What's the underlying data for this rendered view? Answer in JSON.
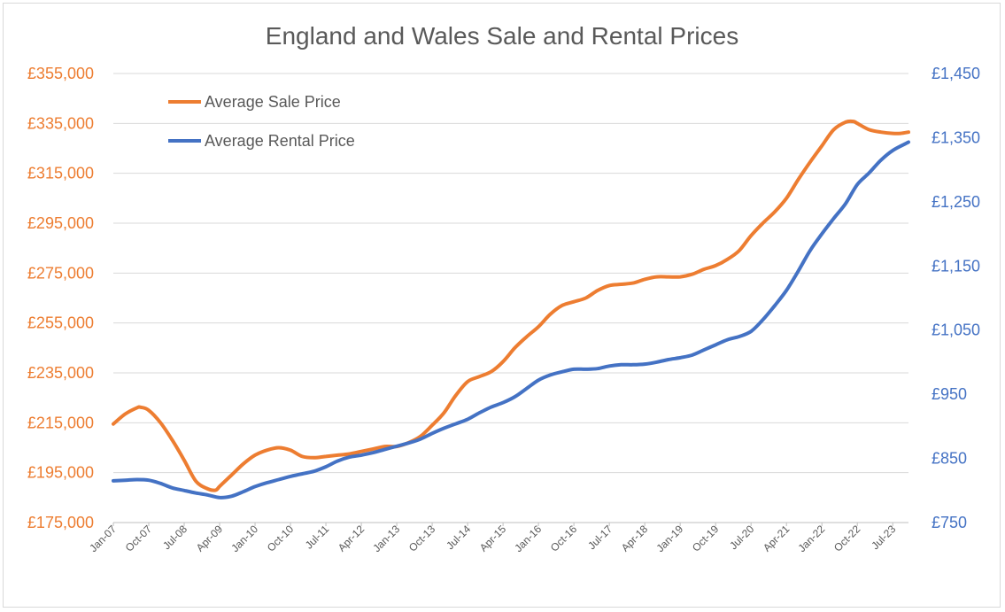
{
  "chart_data": {
    "type": "line",
    "title": "England and Wales Sale and Rental Prices",
    "x_tick_labels": [
      "Jan-07",
      "Oct-07",
      "Jul-08",
      "Apr-09",
      "Jan-10",
      "Oct-10",
      "Jul-11",
      "Apr-12",
      "Jan-13",
      "Oct-13",
      "Jul-14",
      "Apr-15",
      "Jan-16",
      "Oct-16",
      "Jul-17",
      "Apr-18",
      "Jan-19",
      "Oct-19",
      "Jul-20",
      "Apr-21",
      "Jan-22",
      "Oct-22",
      "Jul-23"
    ],
    "x_range": [
      "2007-01",
      "2023-11"
    ],
    "left_axis": {
      "min": 175000,
      "max": 355000,
      "step": 20000,
      "tick_labels": [
        "£175,000",
        "£195,000",
        "£215,000",
        "£235,000",
        "£255,000",
        "£275,000",
        "£295,000",
        "£315,000",
        "£335,000",
        "£355,000"
      ],
      "color": "#ED7D31"
    },
    "right_axis": {
      "min": 750,
      "max": 1450,
      "step": 100,
      "tick_labels": [
        "£750",
        "£850",
        "£950",
        "£1,050",
        "£1,150",
        "£1,250",
        "£1,350",
        "£1,450"
      ],
      "color": "#4472C4"
    },
    "legend_position": "top-left",
    "grid": "horizontal",
    "series": [
      {
        "name": "Average Sale Price",
        "axis": "left",
        "color": "#ED7D31",
        "points": [
          [
            "2007-01",
            214500
          ],
          [
            "2007-04",
            218500
          ],
          [
            "2007-07",
            221000
          ],
          [
            "2007-08",
            221200
          ],
          [
            "2007-10",
            220000
          ],
          [
            "2008-01",
            215000
          ],
          [
            "2008-04",
            208000
          ],
          [
            "2008-07",
            200000
          ],
          [
            "2008-10",
            191500
          ],
          [
            "2009-01",
            188500
          ],
          [
            "2009-03",
            188000
          ],
          [
            "2009-04",
            189500
          ],
          [
            "2009-07",
            194000
          ],
          [
            "2009-10",
            198500
          ],
          [
            "2010-01",
            202000
          ],
          [
            "2010-04",
            204000
          ],
          [
            "2010-07",
            205000
          ],
          [
            "2010-10",
            204000
          ],
          [
            "2011-01",
            201500
          ],
          [
            "2011-04",
            201000
          ],
          [
            "2011-07",
            201500
          ],
          [
            "2011-10",
            202000
          ],
          [
            "2012-01",
            202500
          ],
          [
            "2012-04",
            203500
          ],
          [
            "2012-07",
            204500
          ],
          [
            "2012-10",
            205500
          ],
          [
            "2013-01",
            205500
          ],
          [
            "2013-04",
            207000
          ],
          [
            "2013-07",
            209500
          ],
          [
            "2013-10",
            214000
          ],
          [
            "2014-01",
            219000
          ],
          [
            "2014-04",
            226000
          ],
          [
            "2014-07",
            231500
          ],
          [
            "2014-10",
            233500
          ],
          [
            "2015-01",
            235500
          ],
          [
            "2015-04",
            239500
          ],
          [
            "2015-07",
            245000
          ],
          [
            "2015-10",
            249500
          ],
          [
            "2016-01",
            253500
          ],
          [
            "2016-04",
            258500
          ],
          [
            "2016-07",
            262000
          ],
          [
            "2016-10",
            263500
          ],
          [
            "2017-01",
            265000
          ],
          [
            "2017-04",
            268000
          ],
          [
            "2017-07",
            270000
          ],
          [
            "2017-10",
            270500
          ],
          [
            "2018-01",
            271000
          ],
          [
            "2018-04",
            272500
          ],
          [
            "2018-07",
            273500
          ],
          [
            "2018-10",
            273500
          ],
          [
            "2019-01",
            273500
          ],
          [
            "2019-04",
            274500
          ],
          [
            "2019-07",
            276500
          ],
          [
            "2019-10",
            278000
          ],
          [
            "2020-01",
            280500
          ],
          [
            "2020-04",
            284000
          ],
          [
            "2020-07",
            290000
          ],
          [
            "2020-10",
            295000
          ],
          [
            "2021-01",
            299500
          ],
          [
            "2021-04",
            305000
          ],
          [
            "2021-07",
            312500
          ],
          [
            "2021-10",
            319500
          ],
          [
            "2022-01",
            326000
          ],
          [
            "2022-04",
            332500
          ],
          [
            "2022-07",
            335500
          ],
          [
            "2022-09",
            335800
          ],
          [
            "2022-10",
            335000
          ],
          [
            "2023-01",
            332500
          ],
          [
            "2023-04",
            331500
          ],
          [
            "2023-07",
            331000
          ],
          [
            "2023-09",
            331000
          ],
          [
            "2023-11",
            331500
          ]
        ]
      },
      {
        "name": "Average Rental Price",
        "axis": "right",
        "color": "#4472C4",
        "points": [
          [
            "2007-01",
            815
          ],
          [
            "2007-04",
            816
          ],
          [
            "2007-07",
            817
          ],
          [
            "2007-10",
            816
          ],
          [
            "2008-01",
            811
          ],
          [
            "2008-04",
            804
          ],
          [
            "2008-07",
            800
          ],
          [
            "2008-10",
            796
          ],
          [
            "2009-01",
            793
          ],
          [
            "2009-04",
            789
          ],
          [
            "2009-07",
            791
          ],
          [
            "2009-10",
            798
          ],
          [
            "2010-01",
            806
          ],
          [
            "2010-04",
            812
          ],
          [
            "2010-07",
            817
          ],
          [
            "2010-10",
            822
          ],
          [
            "2011-01",
            826
          ],
          [
            "2011-04",
            830
          ],
          [
            "2011-07",
            837
          ],
          [
            "2011-10",
            846
          ],
          [
            "2012-01",
            852
          ],
          [
            "2012-04",
            855
          ],
          [
            "2012-07",
            859
          ],
          [
            "2012-10",
            864
          ],
          [
            "2013-01",
            869
          ],
          [
            "2013-04",
            874
          ],
          [
            "2013-07",
            880
          ],
          [
            "2013-10",
            889
          ],
          [
            "2014-01",
            897
          ],
          [
            "2014-04",
            904
          ],
          [
            "2014-07",
            911
          ],
          [
            "2014-10",
            921
          ],
          [
            "2015-01",
            930
          ],
          [
            "2015-04",
            937
          ],
          [
            "2015-07",
            946
          ],
          [
            "2015-10",
            959
          ],
          [
            "2016-01",
            972
          ],
          [
            "2016-04",
            980
          ],
          [
            "2016-07",
            985
          ],
          [
            "2016-10",
            989
          ],
          [
            "2017-01",
            989
          ],
          [
            "2017-04",
            990
          ],
          [
            "2017-07",
            994
          ],
          [
            "2017-10",
            996
          ],
          [
            "2018-01",
            996
          ],
          [
            "2018-04",
            997
          ],
          [
            "2018-07",
            1000
          ],
          [
            "2018-10",
            1004
          ],
          [
            "2019-01",
            1007
          ],
          [
            "2019-04",
            1011
          ],
          [
            "2019-07",
            1019
          ],
          [
            "2019-10",
            1027
          ],
          [
            "2020-01",
            1035
          ],
          [
            "2020-04",
            1040
          ],
          [
            "2020-07",
            1048
          ],
          [
            "2020-10",
            1066
          ],
          [
            "2021-01",
            1088
          ],
          [
            "2021-04",
            1112
          ],
          [
            "2021-07",
            1142
          ],
          [
            "2021-10",
            1174
          ],
          [
            "2022-01",
            1200
          ],
          [
            "2022-04",
            1224
          ],
          [
            "2022-07",
            1247
          ],
          [
            "2022-10",
            1277
          ],
          [
            "2023-01",
            1295
          ],
          [
            "2023-04",
            1315
          ],
          [
            "2023-07",
            1330
          ],
          [
            "2023-11",
            1343
          ]
        ]
      }
    ]
  }
}
